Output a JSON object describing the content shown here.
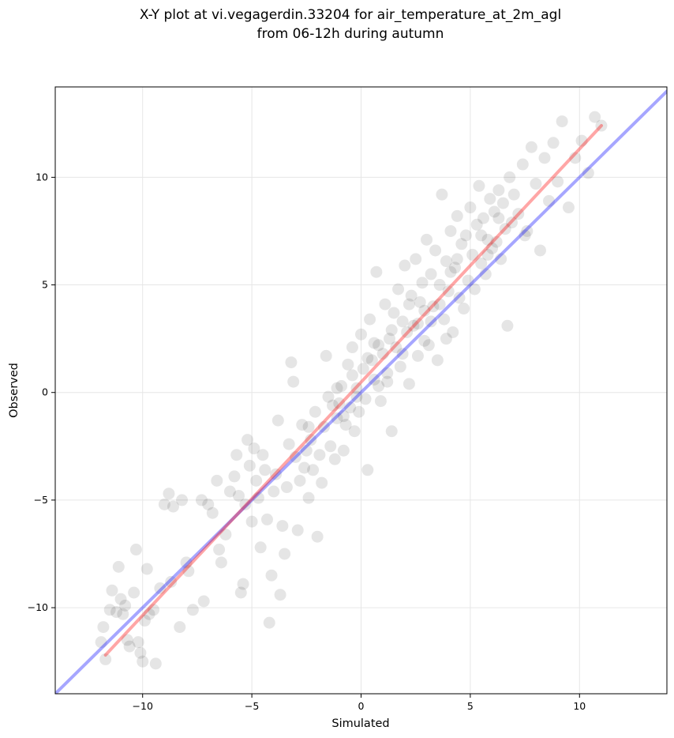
{
  "chart_data": {
    "type": "scatter",
    "title": "X-Y plot at vi.vegagerdin.33204 for air_temperature_at_2m_agl",
    "subtitle": "from 06-12h during autumn",
    "xlabel": "Simulated",
    "ylabel": "Observed",
    "xlim": [
      -14,
      14
    ],
    "ylim": [
      -14,
      14.2
    ],
    "xticks": [
      -10,
      -5,
      0,
      5,
      10
    ],
    "yticks": [
      -10,
      -5,
      0,
      5,
      10
    ],
    "xtick_labels": [
      "−10",
      "−5",
      "0",
      "5",
      "10"
    ],
    "ytick_labels": [
      "−10",
      "−5",
      "0",
      "5",
      "10"
    ],
    "grid": true,
    "legend": "none",
    "point_color": "#000000",
    "point_opacity": 0.1,
    "identity_line": {
      "color": "#0000ff",
      "x": [
        -14,
        14
      ],
      "y": [
        -14,
        14
      ]
    },
    "fit_line": {
      "color": "#ff0000",
      "x": [
        -11.7,
        11.0
      ],
      "y": [
        -12.2,
        12.4
      ]
    },
    "points": [
      [
        -11.8,
        -10.9
      ],
      [
        -11.9,
        -11.6
      ],
      [
        -11.7,
        -12.4
      ],
      [
        -11.5,
        -10.1
      ],
      [
        -11.4,
        -9.2
      ],
      [
        -11.2,
        -10.2
      ],
      [
        -11.0,
        -9.6
      ],
      [
        -11.1,
        -8.1
      ],
      [
        -10.9,
        -10.3
      ],
      [
        -10.8,
        -9.9
      ],
      [
        -10.7,
        -11.5
      ],
      [
        -10.6,
        -11.8
      ],
      [
        -10.4,
        -9.3
      ],
      [
        -10.3,
        -7.3
      ],
      [
        -10.2,
        -11.6
      ],
      [
        -10.1,
        -12.1
      ],
      [
        -10.0,
        -12.5
      ],
      [
        -9.9,
        -10.6
      ],
      [
        -9.8,
        -8.2
      ],
      [
        -9.7,
        -10.3
      ],
      [
        -9.4,
        -12.6
      ],
      [
        -9.5,
        -10.1
      ],
      [
        -9.2,
        -9.1
      ],
      [
        -9.0,
        -5.2
      ],
      [
        -8.8,
        -4.7
      ],
      [
        -8.7,
        -8.8
      ],
      [
        -8.6,
        -5.3
      ],
      [
        -8.3,
        -10.9
      ],
      [
        -8.2,
        -5.0
      ],
      [
        -8.0,
        -7.9
      ],
      [
        -7.9,
        -8.3
      ],
      [
        -7.7,
        -10.1
      ],
      [
        -7.3,
        -5.0
      ],
      [
        -7.2,
        -9.7
      ],
      [
        -7.0,
        -5.2
      ],
      [
        -6.8,
        -5.6
      ],
      [
        -6.6,
        -4.1
      ],
      [
        -6.5,
        -7.3
      ],
      [
        -6.4,
        -7.9
      ],
      [
        -6.2,
        -6.6
      ],
      [
        -6.0,
        -4.6
      ],
      [
        -5.8,
        -3.9
      ],
      [
        -5.7,
        -2.9
      ],
      [
        -5.6,
        -4.8
      ],
      [
        -5.5,
        -9.3
      ],
      [
        -5.4,
        -8.9
      ],
      [
        -5.3,
        -5.2
      ],
      [
        -5.2,
        -2.2
      ],
      [
        -5.1,
        -3.4
      ],
      [
        -5.0,
        -6.0
      ],
      [
        -4.9,
        -2.6
      ],
      [
        -4.8,
        -4.1
      ],
      [
        -4.7,
        -4.9
      ],
      [
        -4.6,
        -7.2
      ],
      [
        -4.5,
        -2.9
      ],
      [
        -4.4,
        -3.6
      ],
      [
        -4.3,
        -5.9
      ],
      [
        -4.2,
        -10.7
      ],
      [
        -4.1,
        -8.5
      ],
      [
        -4.0,
        -4.6
      ],
      [
        -3.9,
        -3.8
      ],
      [
        -3.8,
        -1.3
      ],
      [
        -3.7,
        -9.4
      ],
      [
        -3.6,
        -6.2
      ],
      [
        -3.5,
        -7.5
      ],
      [
        -3.4,
        -4.4
      ],
      [
        -3.3,
        -2.4
      ],
      [
        -3.2,
        1.4
      ],
      [
        -3.1,
        0.5
      ],
      [
        -3.0,
        -3.0
      ],
      [
        -2.9,
        -6.4
      ],
      [
        -2.8,
        -4.1
      ],
      [
        -2.7,
        -1.5
      ],
      [
        -2.6,
        -3.5
      ],
      [
        -2.5,
        -2.7
      ],
      [
        -2.4,
        -4.9
      ],
      [
        -2.3,
        -2.2
      ],
      [
        -2.2,
        -3.6
      ],
      [
        -2.1,
        -0.9
      ],
      [
        -2.0,
        -6.7
      ],
      [
        -1.9,
        -2.9
      ],
      [
        -1.8,
        -4.2
      ],
      [
        -1.7,
        -1.6
      ],
      [
        -1.6,
        1.7
      ],
      [
        -1.5,
        -0.2
      ],
      [
        -1.4,
        -2.5
      ],
      [
        -1.3,
        -0.6
      ],
      [
        -1.2,
        -3.1
      ],
      [
        -1.1,
        -1.2
      ],
      [
        -1.0,
        -0.5
      ],
      [
        -0.9,
        0.3
      ],
      [
        -0.8,
        -2.7
      ],
      [
        -0.7,
        -1.5
      ],
      [
        -0.6,
        1.3
      ],
      [
        -0.5,
        -0.7
      ],
      [
        -0.4,
        0.8
      ],
      [
        -0.3,
        -1.8
      ],
      [
        -0.2,
        0.2
      ],
      [
        -0.1,
        -0.9
      ],
      [
        0.0,
        2.7
      ],
      [
        0.1,
        1.1
      ],
      [
        0.2,
        -0.3
      ],
      [
        0.3,
        -3.6
      ],
      [
        0.4,
        3.4
      ],
      [
        0.5,
        1.5
      ],
      [
        0.6,
        0.6
      ],
      [
        0.7,
        5.6
      ],
      [
        0.8,
        2.2
      ],
      [
        0.9,
        -0.4
      ],
      [
        1.0,
        1.8
      ],
      [
        1.1,
        4.1
      ],
      [
        1.2,
        0.9
      ],
      [
        1.3,
        2.5
      ],
      [
        1.4,
        -1.8
      ],
      [
        1.5,
        3.7
      ],
      [
        1.6,
        2.1
      ],
      [
        1.7,
        4.8
      ],
      [
        1.8,
        1.2
      ],
      [
        1.9,
        3.3
      ],
      [
        2.0,
        5.9
      ],
      [
        2.1,
        2.8
      ],
      [
        2.2,
        0.4
      ],
      [
        2.3,
        4.5
      ],
      [
        2.4,
        3.1
      ],
      [
        2.5,
        6.2
      ],
      [
        2.6,
        1.7
      ],
      [
        2.7,
        4.2
      ],
      [
        2.8,
        5.1
      ],
      [
        2.9,
        3.8
      ],
      [
        3.0,
        7.1
      ],
      [
        3.1,
        2.2
      ],
      [
        3.2,
        5.5
      ],
      [
        3.3,
        4.0
      ],
      [
        3.4,
        6.6
      ],
      [
        3.5,
        1.5
      ],
      [
        3.6,
        5.0
      ],
      [
        3.7,
        9.2
      ],
      [
        3.8,
        3.4
      ],
      [
        3.9,
        6.1
      ],
      [
        4.0,
        4.7
      ],
      [
        4.1,
        7.5
      ],
      [
        4.2,
        2.8
      ],
      [
        4.3,
        5.8
      ],
      [
        4.4,
        8.2
      ],
      [
        4.5,
        4.4
      ],
      [
        4.6,
        6.9
      ],
      [
        4.7,
        3.9
      ],
      [
        4.8,
        7.3
      ],
      [
        4.9,
        5.2
      ],
      [
        5.0,
        8.6
      ],
      [
        5.1,
        6.4
      ],
      [
        5.2,
        4.8
      ],
      [
        5.3,
        7.8
      ],
      [
        5.4,
        9.6
      ],
      [
        5.5,
        6.0
      ],
      [
        5.6,
        8.1
      ],
      [
        5.7,
        5.5
      ],
      [
        5.8,
        7.1
      ],
      [
        5.9,
        9.0
      ],
      [
        6.0,
        6.7
      ],
      [
        6.1,
        8.4
      ],
      [
        6.2,
        7.0
      ],
      [
        6.3,
        9.4
      ],
      [
        6.4,
        6.2
      ],
      [
        6.5,
        8.8
      ],
      [
        6.6,
        7.6
      ],
      [
        6.7,
        3.1
      ],
      [
        6.8,
        10.0
      ],
      [
        6.9,
        7.9
      ],
      [
        7.0,
        9.2
      ],
      [
        7.2,
        8.3
      ],
      [
        7.4,
        10.6
      ],
      [
        7.6,
        7.5
      ],
      [
        7.8,
        11.4
      ],
      [
        8.0,
        9.7
      ],
      [
        8.2,
        6.6
      ],
      [
        8.4,
        10.9
      ],
      [
        8.6,
        8.9
      ],
      [
        8.8,
        11.6
      ],
      [
        9.0,
        9.8
      ],
      [
        9.2,
        12.6
      ],
      [
        9.5,
        8.6
      ],
      [
        9.8,
        10.9
      ],
      [
        10.1,
        11.7
      ],
      [
        10.4,
        10.2
      ],
      [
        10.7,
        12.8
      ],
      [
        11.0,
        12.4
      ],
      [
        -0.4,
        2.1
      ],
      [
        0.3,
        1.6
      ],
      [
        1.4,
        2.9
      ],
      [
        2.2,
        4.1
      ],
      [
        -1.1,
        0.2
      ],
      [
        0.8,
        0.3
      ],
      [
        2.6,
        3.2
      ],
      [
        3.6,
        4.1
      ],
      [
        4.4,
        6.2
      ],
      [
        5.5,
        7.3
      ],
      [
        -2.4,
        -1.6
      ],
      [
        1.9,
        1.8
      ],
      [
        3.2,
        3.3
      ],
      [
        -0.2,
        -0.2
      ],
      [
        0.6,
        2.3
      ],
      [
        4.1,
        5.6
      ],
      [
        5.8,
        6.4
      ],
      [
        2.9,
        2.4
      ],
      [
        -0.8,
        -1.1
      ],
      [
        1.2,
        0.5
      ],
      [
        3.9,
        2.5
      ],
      [
        6.3,
        8.1
      ],
      [
        7.5,
        7.3
      ]
    ]
  }
}
